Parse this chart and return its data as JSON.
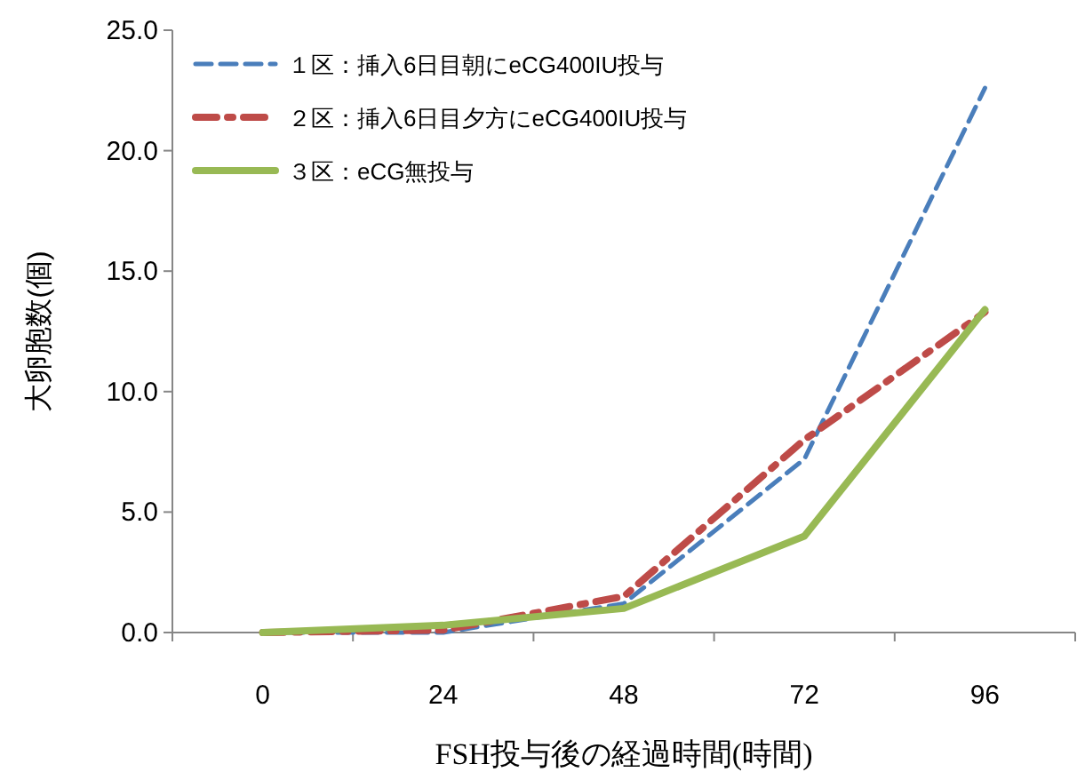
{
  "chart_data": {
    "type": "line",
    "xlabel": "FSH投与後の経過時間(時間)",
    "ylabel": "大卵胞数(個)",
    "categories": [
      "0",
      "24",
      "48",
      "72",
      "96"
    ],
    "ylim": [
      0,
      25
    ],
    "yticks": [
      {
        "value": 0,
        "label": "0.0"
      },
      {
        "value": 5,
        "label": "5.0"
      },
      {
        "value": 10,
        "label": "10.0"
      },
      {
        "value": 15,
        "label": "15.0"
      },
      {
        "value": 20,
        "label": "20.0"
      },
      {
        "value": 25,
        "label": "25.0"
      }
    ],
    "grid": false,
    "legend": "top left",
    "marker": "none",
    "series": [
      {
        "name": "１区：挿入6日目朝にeCG400IU投与",
        "color": "#4a7ebb",
        "line_style": "dashed",
        "values": [
          0,
          0,
          1.2,
          7.2,
          22.6
        ]
      },
      {
        "name": "２区：挿入6日目夕方にeCG400IU投与",
        "color": "#be4b48",
        "line_style": "dashdot",
        "values": [
          0,
          0.1,
          1.5,
          8.0,
          13.3
        ]
      },
      {
        "name": "３区：eCG無投与",
        "color": "#98b954",
        "line_style": "solid",
        "values": [
          0,
          0.3,
          1.0,
          4.0,
          13.4
        ]
      }
    ]
  }
}
